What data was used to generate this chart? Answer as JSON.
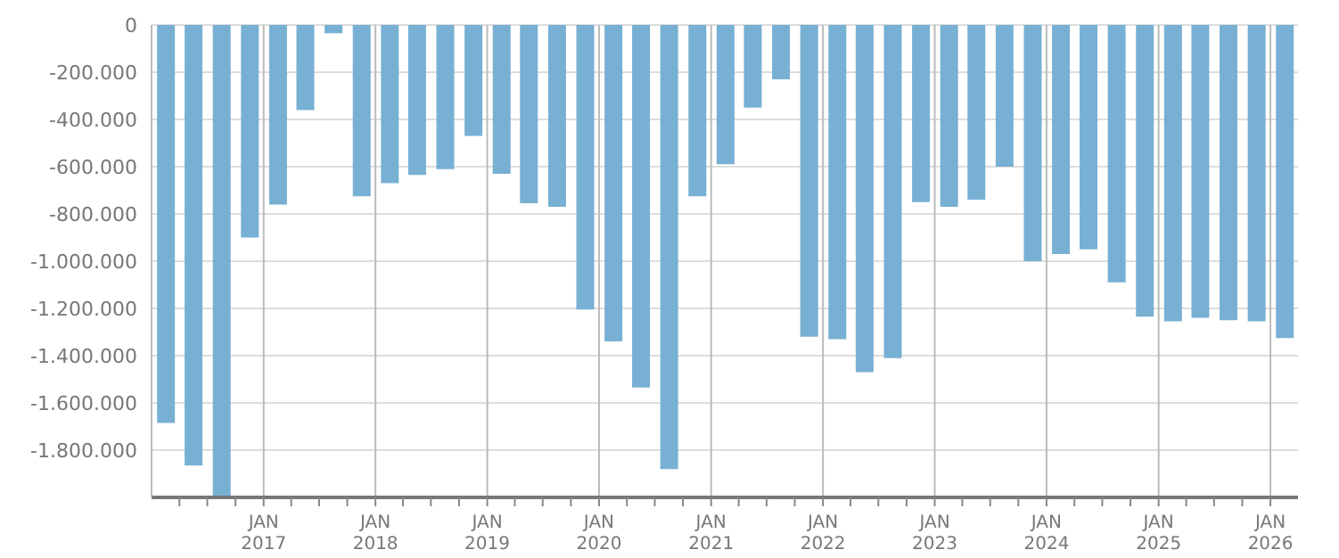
{
  "chart_data": {
    "type": "bar",
    "color": "#78b0d4",
    "x": [
      "2016-02-15",
      "2016-05-15",
      "2016-08-15",
      "2016-11-15",
      "2017-02-15",
      "2017-05-15",
      "2017-08-15",
      "2017-11-15",
      "2018-02-15",
      "2018-05-15",
      "2018-08-15",
      "2018-11-15",
      "2019-02-15",
      "2019-05-15",
      "2019-08-15",
      "2019-11-15",
      "2020-02-15",
      "2020-05-15",
      "2020-08-15",
      "2020-11-15",
      "2021-02-15",
      "2021-05-15",
      "2021-08-15",
      "2021-11-15",
      "2022-02-15",
      "2022-05-15",
      "2022-08-15",
      "2022-11-15",
      "2023-02-15",
      "2023-05-15",
      "2023-08-15",
      "2023-11-15",
      "2024-02-15",
      "2024-05-15",
      "2024-08-15",
      "2024-11-15",
      "2025-02-15",
      "2025-05-15",
      "2025-08-15",
      "2025-11-15",
      "2026-02-15"
    ],
    "values": [
      -1685000,
      -1865000,
      -2000000,
      -900000,
      -760000,
      -360000,
      -35000,
      -725000,
      -670000,
      -635000,
      -610000,
      -470000,
      -630000,
      -755000,
      -770000,
      -1205000,
      -1340000,
      -1535000,
      -1880000,
      -725000,
      -590000,
      -350000,
      -230000,
      -1320000,
      -1330000,
      -1470000,
      -1410000,
      -750000,
      -770000,
      -740000,
      -600000,
      -1000000,
      -970000,
      -950000,
      -1090000,
      -1235000,
      -1255000,
      -1240000,
      -1250000,
      -1255000,
      -1325000
    ],
    "xlim": [
      "2016-01-01",
      "2026-04-01"
    ],
    "xticks": [
      {
        "value": "2016-04-01",
        "label": null
      },
      {
        "value": "2016-07-01",
        "label": null
      },
      {
        "value": "2016-10-01",
        "label": null
      },
      {
        "value": "2017-01-01",
        "label": "JAN 2017"
      },
      {
        "value": "2017-04-01",
        "label": null
      },
      {
        "value": "2017-07-01",
        "label": null
      },
      {
        "value": "2017-10-01",
        "label": null
      },
      {
        "value": "2018-01-01",
        "label": "JAN 2018"
      },
      {
        "value": "2018-04-01",
        "label": null
      },
      {
        "value": "2018-07-01",
        "label": null
      },
      {
        "value": "2018-10-01",
        "label": null
      },
      {
        "value": "2019-01-01",
        "label": "JAN 2019"
      },
      {
        "value": "2019-04-01",
        "label": null
      },
      {
        "value": "2019-07-01",
        "label": null
      },
      {
        "value": "2019-10-01",
        "label": null
      },
      {
        "value": "2020-01-01",
        "label": "JAN 2020"
      },
      {
        "value": "2020-04-01",
        "label": null
      },
      {
        "value": "2020-07-01",
        "label": null
      },
      {
        "value": "2020-10-01",
        "label": null
      },
      {
        "value": "2021-01-01",
        "label": "JAN 2021"
      },
      {
        "value": "2021-04-01",
        "label": null
      },
      {
        "value": "2021-07-01",
        "label": null
      },
      {
        "value": "2021-10-01",
        "label": null
      },
      {
        "value": "2022-01-01",
        "label": "JAN 2022"
      },
      {
        "value": "2022-04-01",
        "label": null
      },
      {
        "value": "2022-07-01",
        "label": null
      },
      {
        "value": "2022-10-01",
        "label": null
      },
      {
        "value": "2023-01-01",
        "label": "JAN 2023"
      },
      {
        "value": "2023-04-01",
        "label": null
      },
      {
        "value": "2023-07-01",
        "label": null
      },
      {
        "value": "2023-10-01",
        "label": null
      },
      {
        "value": "2024-01-01",
        "label": "JAN 2024"
      },
      {
        "value": "2024-04-01",
        "label": null
      },
      {
        "value": "2024-07-01",
        "label": null
      },
      {
        "value": "2024-10-01",
        "label": null
      },
      {
        "value": "2025-01-01",
        "label": "JAN 2025"
      },
      {
        "value": "2025-04-01",
        "label": null
      },
      {
        "value": "2025-07-01",
        "label": null
      },
      {
        "value": "2025-10-01",
        "label": null
      },
      {
        "value": "2026-01-01",
        "label": "JAN 2026"
      }
    ],
    "ylim": [
      -2000000,
      0
    ],
    "yticks": [
      0,
      {
        "value": -200000,
        "label": "-200.000"
      },
      {
        "value": -400000,
        "label": "-400.000"
      },
      {
        "value": -600000,
        "label": "-600.000"
      },
      {
        "value": -800000,
        "label": "-800.000"
      },
      {
        "value": -1000000,
        "label": "-1.000.000"
      },
      {
        "value": -1200000,
        "label": "-1.200.000"
      },
      {
        "value": -1400000,
        "label": "-1.400.000"
      },
      {
        "value": -1600000,
        "label": "-1.600.000"
      },
      {
        "value": -1800000,
        "label": "-1.800.000"
      }
    ],
    "grid": true
  }
}
